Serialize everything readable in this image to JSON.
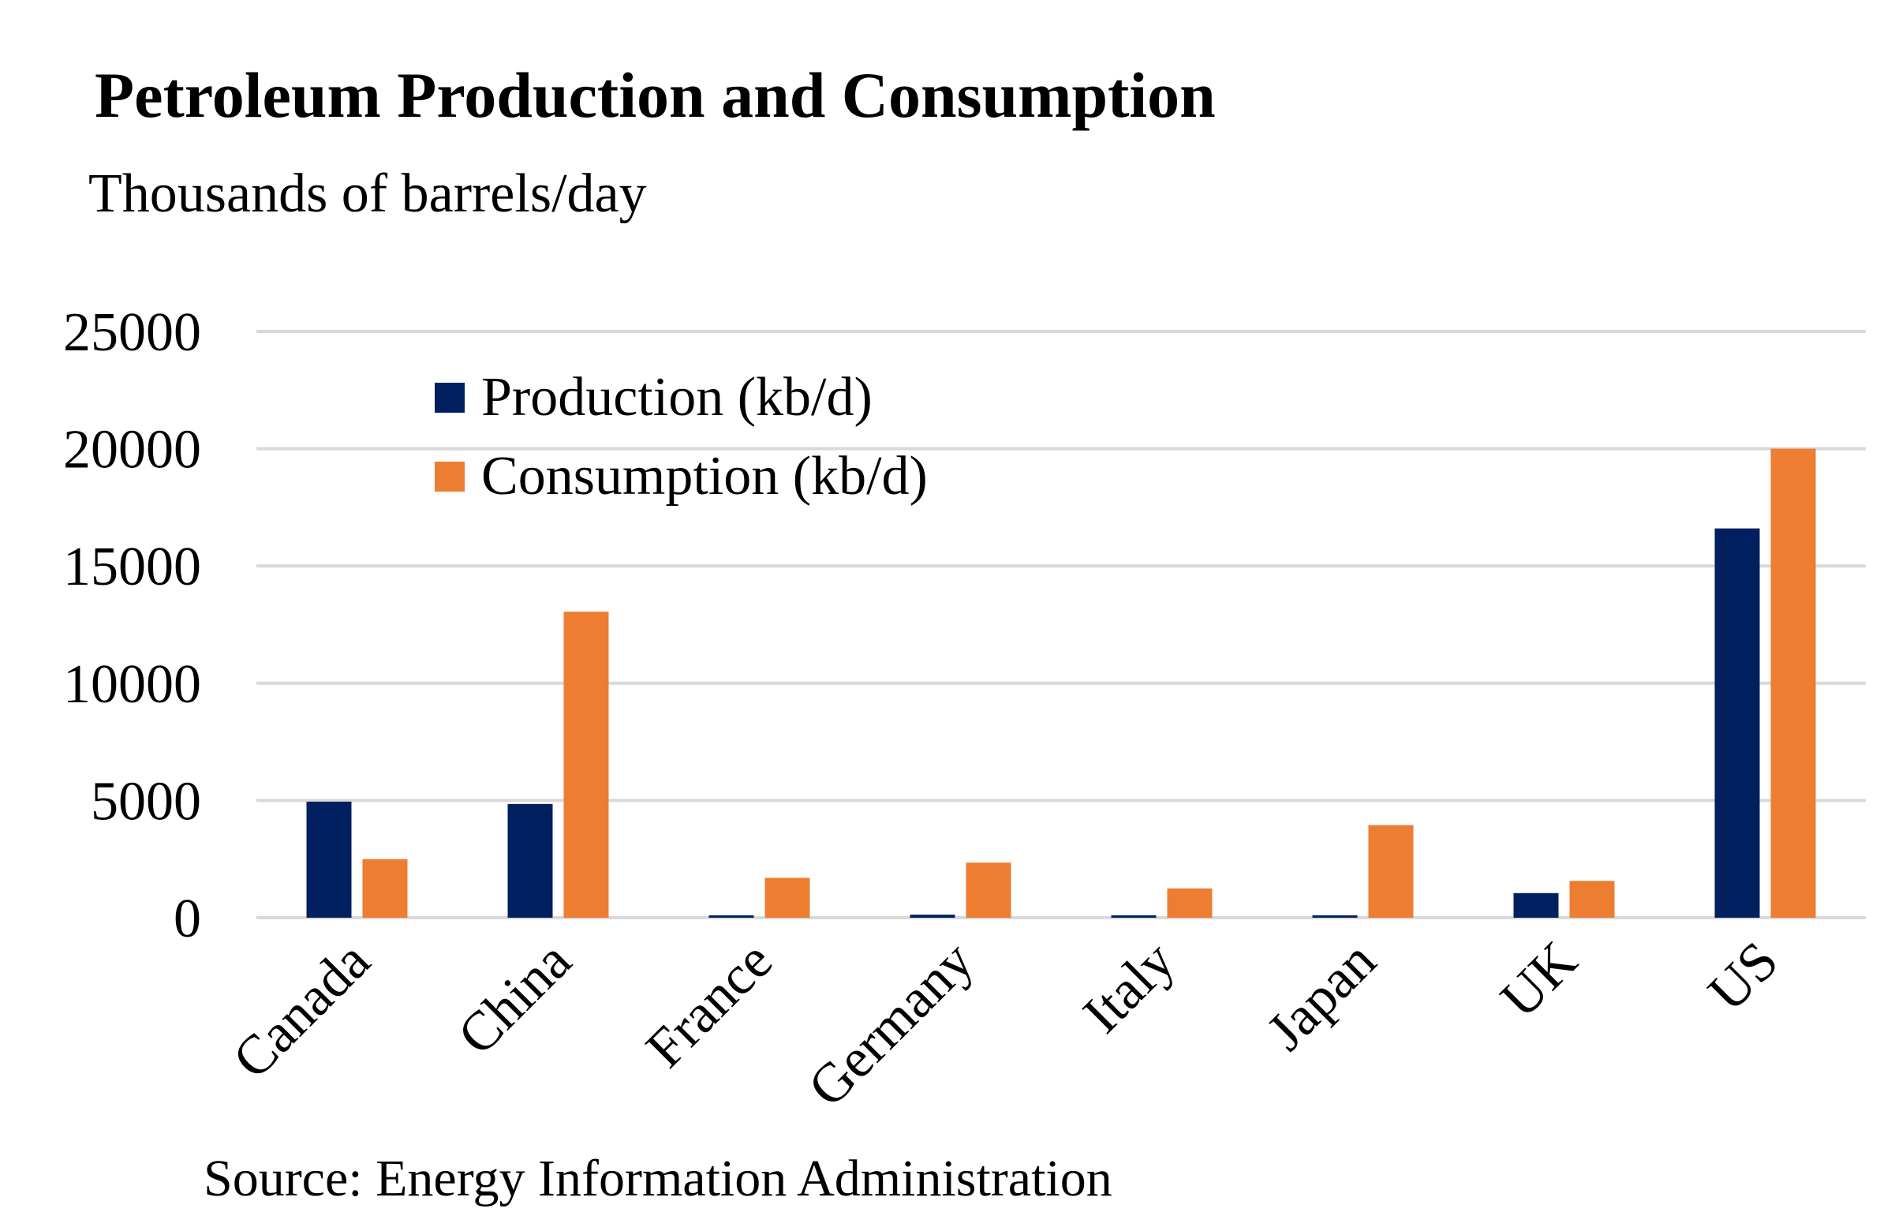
{
  "chart_data": {
    "type": "bar",
    "title": "Petroleum Production and Consumption",
    "subtitle": "Thousands of barrels/day",
    "source": "Source: Energy Information Administration",
    "categories": [
      "Canada",
      "China",
      "France",
      "Germany",
      "Italy",
      "Japan",
      "UK",
      "US"
    ],
    "series": [
      {
        "name": "Production (kb/d)",
        "color": "#002060",
        "values": [
          4950,
          4850,
          20,
          130,
          100,
          10,
          1050,
          16600
        ]
      },
      {
        "name": "Consumption (kb/d)",
        "color": "#ED7D31",
        "values": [
          2500,
          13050,
          1700,
          2350,
          1250,
          3950,
          1570,
          20000
        ]
      }
    ],
    "ylim": [
      0,
      25000
    ],
    "yticks": [
      0,
      5000,
      10000,
      15000,
      20000,
      25000
    ],
    "xlabel": "",
    "ylabel": "",
    "grid": true,
    "gridColor": "#D9D9D9",
    "legend": "top-left"
  }
}
